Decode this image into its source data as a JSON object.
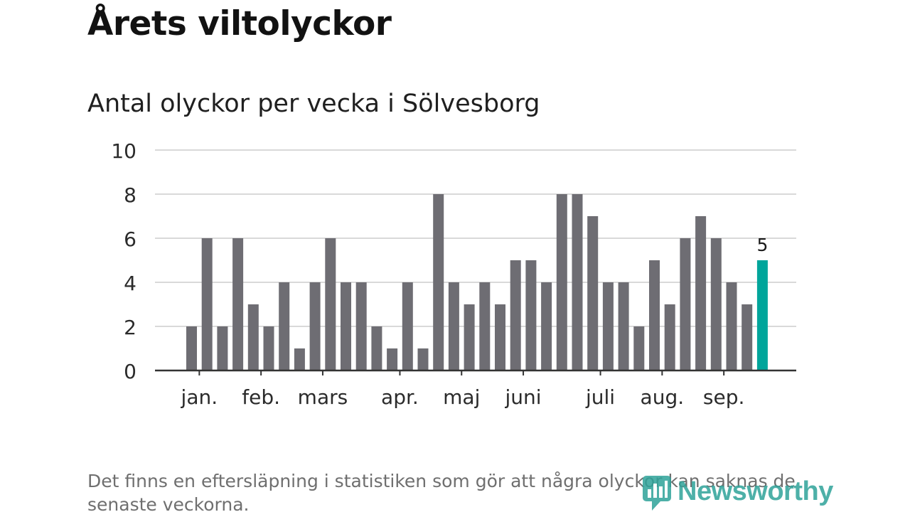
{
  "header": {
    "title": "Årets viltolyckor",
    "subtitle": "Antal olyckor per vecka i Sölvesborg"
  },
  "chart_data": {
    "type": "bar",
    "title": "Årets viltolyckor",
    "subtitle": "Antal olyckor per vecka i Sölvesborg",
    "xlabel": "",
    "ylabel": "",
    "ylim": [
      0,
      10
    ],
    "yticks": [
      0,
      2,
      4,
      6,
      8,
      10
    ],
    "grid": true,
    "legend": "none",
    "month_labels": [
      "jan.",
      "feb.",
      "mars",
      "apr.",
      "maj",
      "juni",
      "juli",
      "aug.",
      "sep."
    ],
    "month_tick_positions": [
      0.5,
      4.5,
      8.5,
      13.5,
      17.5,
      21.5,
      26.5,
      30.5,
      34.5
    ],
    "values": [
      2,
      6,
      2,
      6,
      3,
      2,
      4,
      1,
      4,
      6,
      4,
      4,
      2,
      1,
      4,
      1,
      8,
      4,
      3,
      4,
      3,
      5,
      5,
      4,
      8,
      8,
      7,
      4,
      4,
      2,
      5,
      3,
      6,
      7,
      6,
      4,
      3,
      5
    ],
    "highlight_index": 37,
    "highlight_label": "5",
    "colors": {
      "bar": "#6e6d73",
      "highlight": "#00a59b",
      "grid": "#d9d9d9",
      "axis": "#333333"
    }
  },
  "footer": {
    "note": "Det finns en eftersläpning i statistiken som gör att några olyckor kan saknas de senaste veckorna.",
    "brand": "Newsworthy"
  }
}
